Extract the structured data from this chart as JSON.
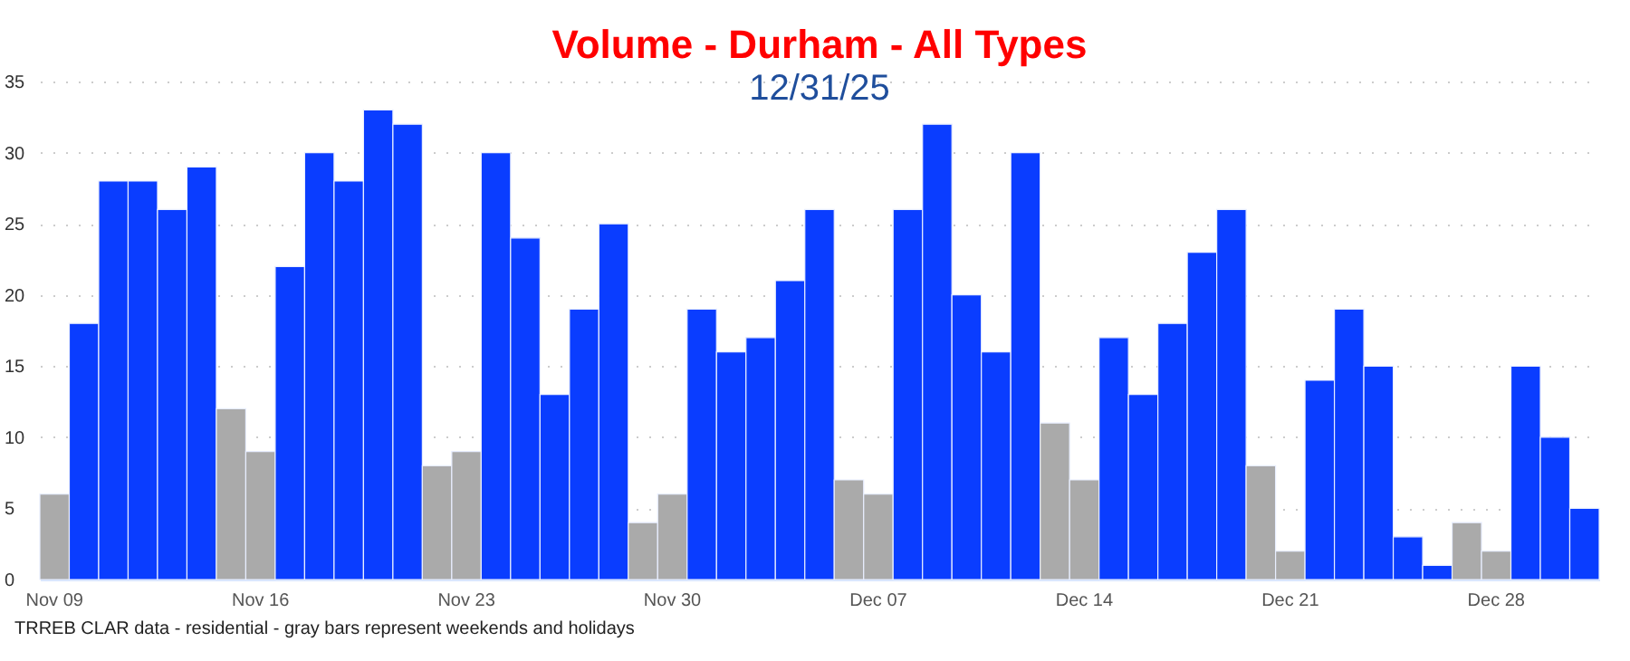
{
  "chart_data": {
    "type": "bar",
    "title": "Volume - Durham - All Types",
    "subtitle": "12/31/25",
    "categories": [
      "Nov 09",
      null,
      null,
      null,
      null,
      null,
      null,
      "Nov 16",
      null,
      null,
      null,
      null,
      null,
      null,
      "Nov 23",
      null,
      null,
      null,
      null,
      null,
      null,
      "Nov 30",
      null,
      null,
      null,
      null,
      null,
      null,
      "Dec 07",
      null,
      null,
      null,
      null,
      null,
      null,
      "Dec 14",
      null,
      null,
      null,
      null,
      null,
      null,
      "Dec 21",
      null,
      null,
      null,
      null,
      null,
      null,
      "Dec 28",
      null,
      null,
      null
    ],
    "values": [
      6,
      18,
      28,
      28,
      26,
      29,
      12,
      9,
      22,
      30,
      28,
      33,
      32,
      8,
      9,
      30,
      24,
      13,
      19,
      25,
      4,
      6,
      19,
      16,
      17,
      21,
      26,
      7,
      6,
      26,
      32,
      20,
      16,
      30,
      11,
      7,
      17,
      13,
      18,
      23,
      26,
      8,
      2,
      14,
      19,
      15,
      3,
      1,
      4,
      2,
      15,
      10,
      5
    ],
    "colors": [
      "#aaaaaa",
      "#0a3dff",
      "#0a3dff",
      "#0a3dff",
      "#0a3dff",
      "#0a3dff",
      "#aaaaaa",
      "#aaaaaa",
      "#0a3dff",
      "#0a3dff",
      "#0a3dff",
      "#0a3dff",
      "#0a3dff",
      "#aaaaaa",
      "#aaaaaa",
      "#0a3dff",
      "#0a3dff",
      "#0a3dff",
      "#0a3dff",
      "#0a3dff",
      "#aaaaaa",
      "#aaaaaa",
      "#0a3dff",
      "#0a3dff",
      "#0a3dff",
      "#0a3dff",
      "#0a3dff",
      "#aaaaaa",
      "#aaaaaa",
      "#0a3dff",
      "#0a3dff",
      "#0a3dff",
      "#0a3dff",
      "#0a3dff",
      "#aaaaaa",
      "#aaaaaa",
      "#0a3dff",
      "#0a3dff",
      "#0a3dff",
      "#0a3dff",
      "#0a3dff",
      "#aaaaaa",
      "#aaaaaa",
      "#0a3dff",
      "#0a3dff",
      "#0a3dff",
      "#0a3dff",
      "#0a3dff",
      "#aaaaaa",
      "#aaaaaa",
      "#0a3dff",
      "#0a3dff",
      "#0a3dff"
    ],
    "ylim": [
      0,
      35
    ],
    "yticks": [
      0,
      5,
      10,
      15,
      20,
      25,
      30,
      35
    ],
    "grid": "y",
    "annotations": [
      "TRREB CLAR data - residential - gray bars represent weekends and holidays"
    ]
  }
}
